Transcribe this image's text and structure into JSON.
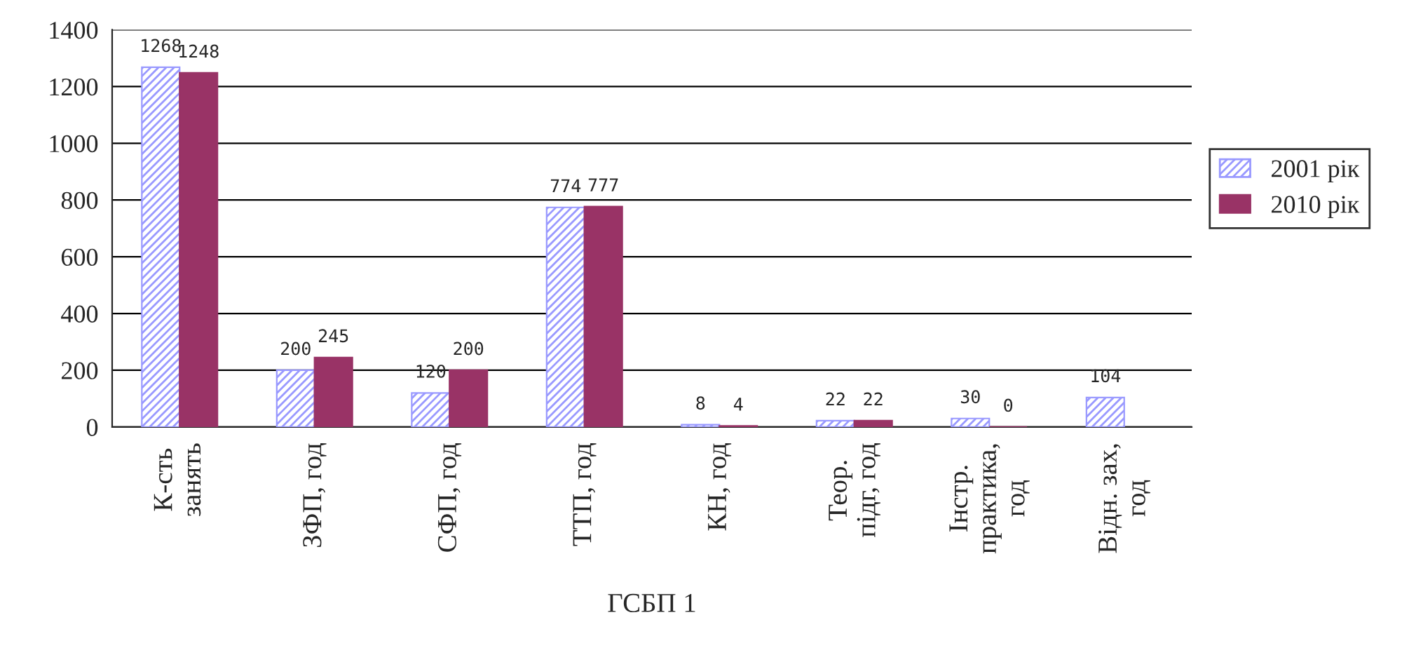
{
  "chart_data": {
    "type": "bar",
    "xlabel": "ГСБП 1",
    "categories": [
      "К-сть\nзанять",
      "ЗФП, год",
      "СФП, год",
      "ТТП, год",
      "КН, год",
      "Теор.\nпідг, год",
      "Інстр.\nпрактика,\nгод",
      "Відн. зах,\nгод"
    ],
    "series": [
      {
        "name": "2001 рік",
        "color": "#9999ff",
        "values": [
          1268,
          200,
          120,
          774,
          8,
          22,
          30,
          104
        ]
      },
      {
        "name": "2010 рік",
        "color": "#993366",
        "values": [
          1248,
          245,
          200,
          777,
          4,
          22,
          0,
          null
        ]
      }
    ],
    "ylim": [
      0,
      1400
    ],
    "yticks": [
      0,
      200,
      400,
      600,
      800,
      1000,
      1200,
      1400
    ],
    "grid": "y",
    "legend": "right",
    "data_labels": true
  }
}
